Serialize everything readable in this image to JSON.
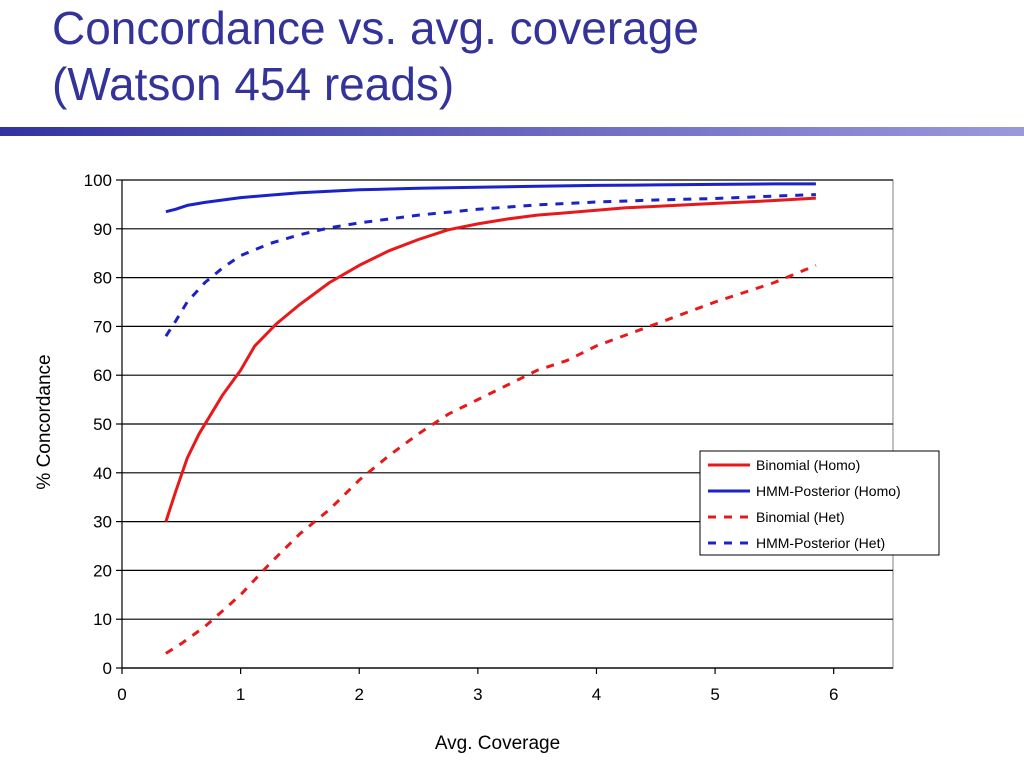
{
  "slide": {
    "title_line1": "Concordance vs. avg. coverage",
    "title_line2": "(Watson 454 reads)",
    "title_color": "#333399",
    "rule_color_start": "#3333a0",
    "rule_color_end": "#9999dd"
  },
  "chart_data": {
    "type": "line",
    "xlabel": "Avg. Coverage",
    "ylabel": "% Concordance",
    "xlim": [
      0,
      6.5
    ],
    "ylim": [
      0,
      100
    ],
    "xticks": [
      0,
      1,
      2,
      3,
      4,
      5,
      6
    ],
    "yticks": [
      0,
      10,
      20,
      30,
      40,
      50,
      60,
      70,
      80,
      90,
      100
    ],
    "grid": "horizontal",
    "legend_position": "right",
    "series": [
      {
        "name": "Binomial (Homo)",
        "color": "#e8191b",
        "dash": "solid",
        "x": [
          0.37,
          0.45,
          0.55,
          0.65,
          0.75,
          0.85,
          1.0,
          1.12,
          1.3,
          1.5,
          1.75,
          2.0,
          2.25,
          2.5,
          2.75,
          3.0,
          3.25,
          3.5,
          3.75,
          4.0,
          4.25,
          4.5,
          4.75,
          5.0,
          5.25,
          5.5,
          5.85
        ],
        "y": [
          30,
          36,
          43,
          48,
          52,
          56,
          61,
          66,
          70.5,
          74.5,
          79,
          82.5,
          85.5,
          87.8,
          89.8,
          91,
          92,
          92.8,
          93.3,
          93.8,
          94.3,
          94.6,
          94.9,
          95.2,
          95.5,
          95.8,
          96.3
        ]
      },
      {
        "name": "HMM-Posterior (Homo)",
        "color": "#1a22c8",
        "dash": "solid",
        "x": [
          0.37,
          0.45,
          0.55,
          0.7,
          0.85,
          1.0,
          1.25,
          1.5,
          1.75,
          2.0,
          2.5,
          3.0,
          3.5,
          4.0,
          4.5,
          5.0,
          5.5,
          5.85
        ],
        "y": [
          93.5,
          94,
          94.8,
          95.4,
          95.9,
          96.4,
          96.9,
          97.4,
          97.7,
          98,
          98.3,
          98.5,
          98.7,
          98.9,
          99,
          99.1,
          99.2,
          99.2
        ]
      },
      {
        "name": "Binomial (Het)",
        "color": "#e8191b",
        "dash": "dashed",
        "x": [
          0.37,
          0.5,
          0.7,
          1.0,
          1.25,
          1.5,
          1.75,
          2.0,
          2.25,
          2.5,
          2.75,
          3.0,
          3.25,
          3.5,
          3.75,
          4.0,
          4.5,
          5.0,
          5.5,
          5.85
        ],
        "y": [
          3,
          5,
          8.5,
          15,
          21.5,
          27.5,
          32.5,
          38.5,
          43.5,
          48,
          52,
          55,
          58,
          61,
          63,
          66,
          70.5,
          75,
          79,
          82.5
        ]
      },
      {
        "name": "HMM-Posterior (Het)",
        "color": "#1a22c8",
        "dash": "dashed",
        "x": [
          0.37,
          0.45,
          0.55,
          0.7,
          0.85,
          1.0,
          1.25,
          1.5,
          1.75,
          2.0,
          2.5,
          3.0,
          3.5,
          4.0,
          4.5,
          5.0,
          5.5,
          5.85
        ],
        "y": [
          68,
          71,
          75,
          79,
          82,
          84.5,
          87,
          88.8,
          90.2,
          91.2,
          92.8,
          94,
          94.9,
          95.5,
          95.9,
          96.2,
          96.7,
          97
        ]
      }
    ]
  }
}
